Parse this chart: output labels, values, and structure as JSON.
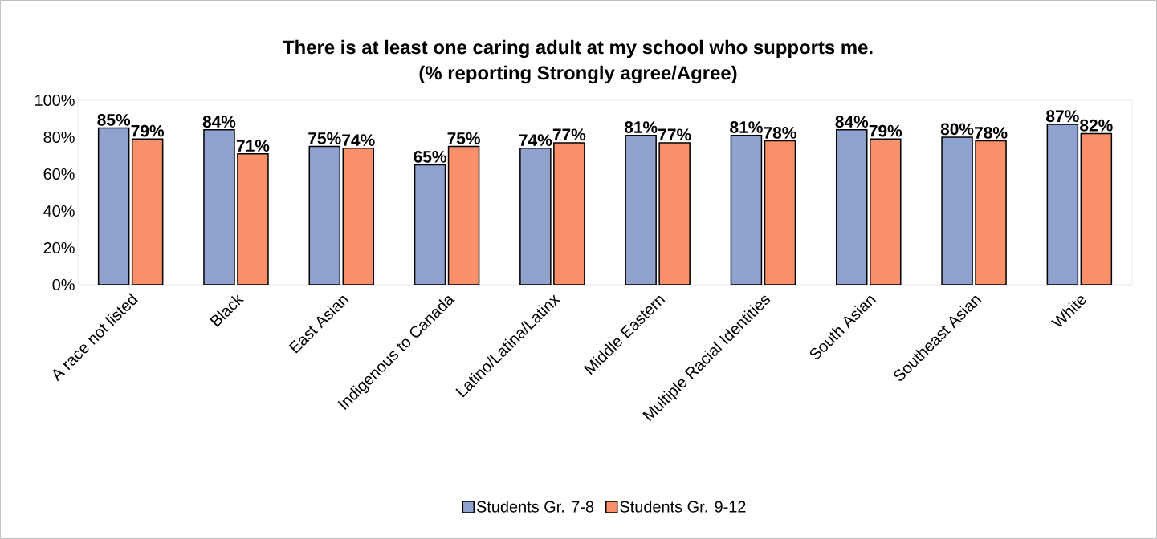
{
  "chart_data": {
    "type": "bar",
    "title": "There is at least one caring adult at my school who supports me.",
    "subtitle": "(% reporting Strongly agree/Agree)",
    "categories": [
      "A race not listed",
      "Black",
      "East Asian",
      "Indigenous to Canada",
      "Latino/Latina/Latinx",
      "Middle Eastern",
      "Multiple Racial Identities",
      "South Asian",
      "Southeast Asian",
      "White"
    ],
    "series": [
      {
        "name": "Students Gr. 7-8",
        "color": "#8fa2ce",
        "values": [
          85,
          84,
          75,
          65,
          74,
          81,
          81,
          84,
          80,
          87
        ],
        "value_labels": [
          "85%",
          "84%",
          "75%",
          "65%",
          "74%",
          "81%",
          "81%",
          "84%",
          "80%",
          "87%"
        ]
      },
      {
        "name": "Students Gr. 9-12",
        "color": "#f9906a",
        "values": [
          79,
          71,
          74,
          75,
          77,
          77,
          78,
          79,
          78,
          82
        ],
        "value_labels": [
          "79%",
          "71%",
          "74%",
          "75%",
          "77%",
          "77%",
          "78%",
          "79%",
          "78%",
          "82%"
        ]
      }
    ],
    "ylim": [
      0,
      100
    ],
    "yticks": [
      {
        "value": 0,
        "label": "0%"
      },
      {
        "value": 20,
        "label": "20%"
      },
      {
        "value": 40,
        "label": "40%"
      },
      {
        "value": 60,
        "label": "60%"
      },
      {
        "value": 80,
        "label": "80%"
      },
      {
        "value": 100,
        "label": "100%"
      }
    ],
    "grid": false,
    "legend": "bottom"
  }
}
